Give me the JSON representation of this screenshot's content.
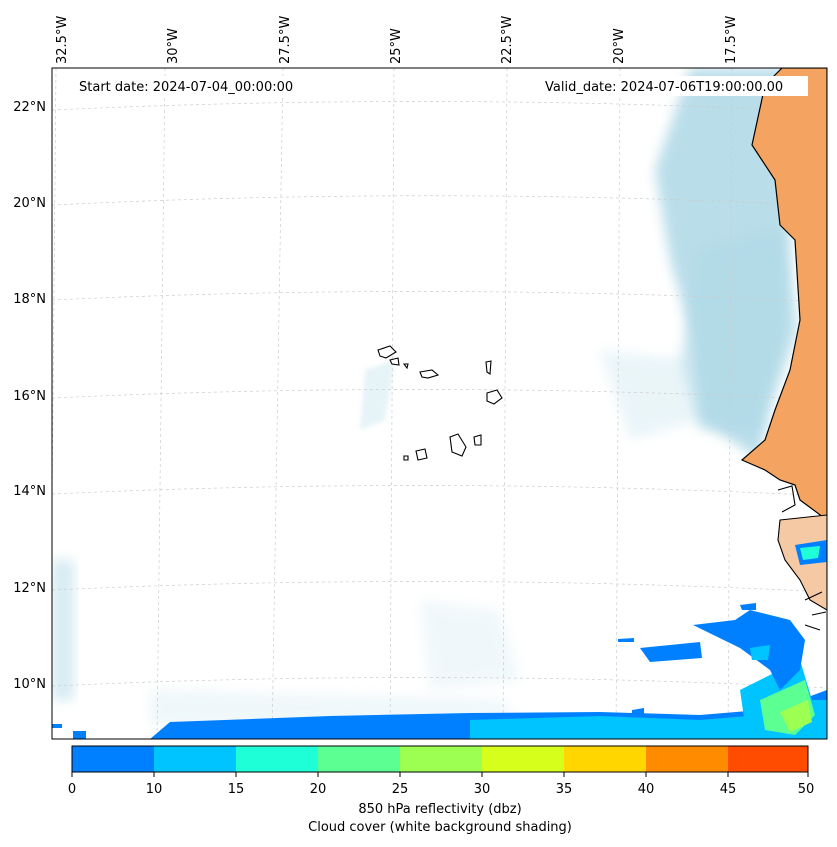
{
  "map": {
    "start_label": "Start date: 2024-07-04_00:00:00",
    "valid_label": "Valid_date: 2024-07-06T19:00:00.00",
    "lon_labels": [
      "32.5°W",
      "30°W",
      "27.5°W",
      "25°W",
      "22.5°W",
      "20°W",
      "17.5°W"
    ],
    "lat_labels": [
      "22°N",
      "20°N",
      "18°N",
      "16°N",
      "14°N",
      "12°N",
      "10°N"
    ],
    "land_color": "#f4a460",
    "cloud_color": "#add8e6",
    "coast_color": "#000000"
  },
  "colorbar": {
    "ticks": [
      "0",
      "10",
      "15",
      "20",
      "25",
      "30",
      "35",
      "40",
      "45",
      "50"
    ],
    "colors": [
      "#0080ff",
      "#00c4ff",
      "#1effd8",
      "#5cff92",
      "#9cff52",
      "#d6ff1c",
      "#ffd600",
      "#ff8c00",
      "#ff4c00"
    ],
    "label_line1": "850 hPa reflectivity (dbz)",
    "label_line2": "Cloud cover (white background shading)"
  }
}
